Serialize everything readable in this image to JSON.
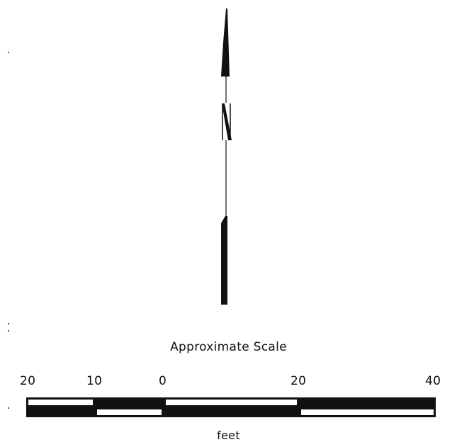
{
  "north_arrow": {
    "label": "N"
  },
  "scale": {
    "title": "Approximate Scale",
    "tick_labels": [
      "20",
      "10",
      "0",
      "20",
      "40"
    ],
    "units": "feet"
  }
}
